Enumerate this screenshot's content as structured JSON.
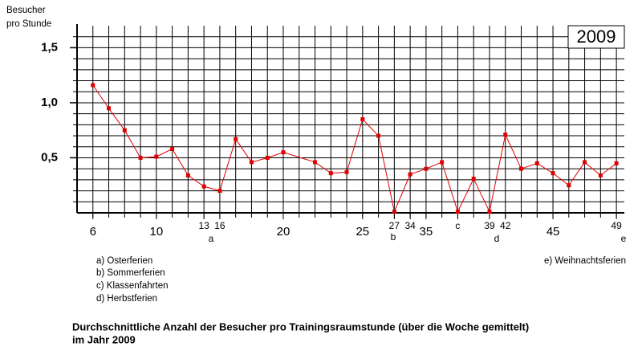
{
  "chart_data": {
    "type": "line",
    "title": [
      "Durchschnittliche Anzahl der Besucher pro Trainingsraumstunde (über die Woche gemittelt)",
      "im Jahr 2009"
    ],
    "ylabel": [
      "Besucher",
      "pro Stunde"
    ],
    "badge": "2009",
    "x": [
      0,
      1,
      2,
      3,
      4,
      5,
      6,
      7,
      8,
      9,
      10,
      11,
      12,
      14,
      15,
      16,
      17,
      18,
      19,
      20,
      21,
      22,
      23,
      24,
      25,
      26,
      27,
      28,
      29,
      30,
      31,
      32,
      33
    ],
    "values": [
      1.16,
      0.95,
      0.75,
      0.5,
      0.51,
      0.58,
      0.34,
      0.24,
      0.2,
      0.67,
      0.46,
      0.5,
      0.55,
      0.46,
      0.36,
      0.37,
      0.85,
      0.7,
      0.01,
      0.35,
      0.4,
      0.46,
      0.01,
      0.31,
      0.01,
      0.71,
      0.4,
      0.45,
      0.36,
      0.25,
      0.46,
      0.34,
      0.45
    ],
    "color": "#e00000",
    "xlim": [
      -1,
      33.5
    ],
    "xticks": [
      {
        "value": 0,
        "label": "6"
      },
      {
        "value": 4,
        "label": "10"
      },
      {
        "value": 7,
        "label": "13"
      },
      {
        "value": 8,
        "label": "16"
      },
      {
        "value": 12,
        "label": "20"
      },
      {
        "value": 17,
        "label": "25"
      },
      {
        "value": 19,
        "label": "27"
      },
      {
        "value": 20,
        "label": "34"
      },
      {
        "value": 21,
        "label": "35"
      },
      {
        "value": 23,
        "label": "c"
      },
      {
        "value": 25,
        "label": "39"
      },
      {
        "value": 26,
        "label": "42"
      },
      {
        "value": 29,
        "label": "45"
      },
      {
        "value": 33,
        "label": "49"
      }
    ],
    "ylim": [
      0,
      1.7
    ],
    "yticks": [
      {
        "value": 0.5,
        "label": "0,5"
      },
      {
        "value": 1.0,
        "label": "1,0"
      },
      {
        "value": 1.5,
        "label": "1,5"
      }
    ],
    "annotations": [
      "a",
      "b",
      "d",
      "e"
    ],
    "notes": [
      "a) Osterferien",
      "b) Sommerferien",
      "c) Klassenfahrten",
      "d) Herbstferien",
      "e) Weihnachtsferien"
    ],
    "grid": true
  }
}
